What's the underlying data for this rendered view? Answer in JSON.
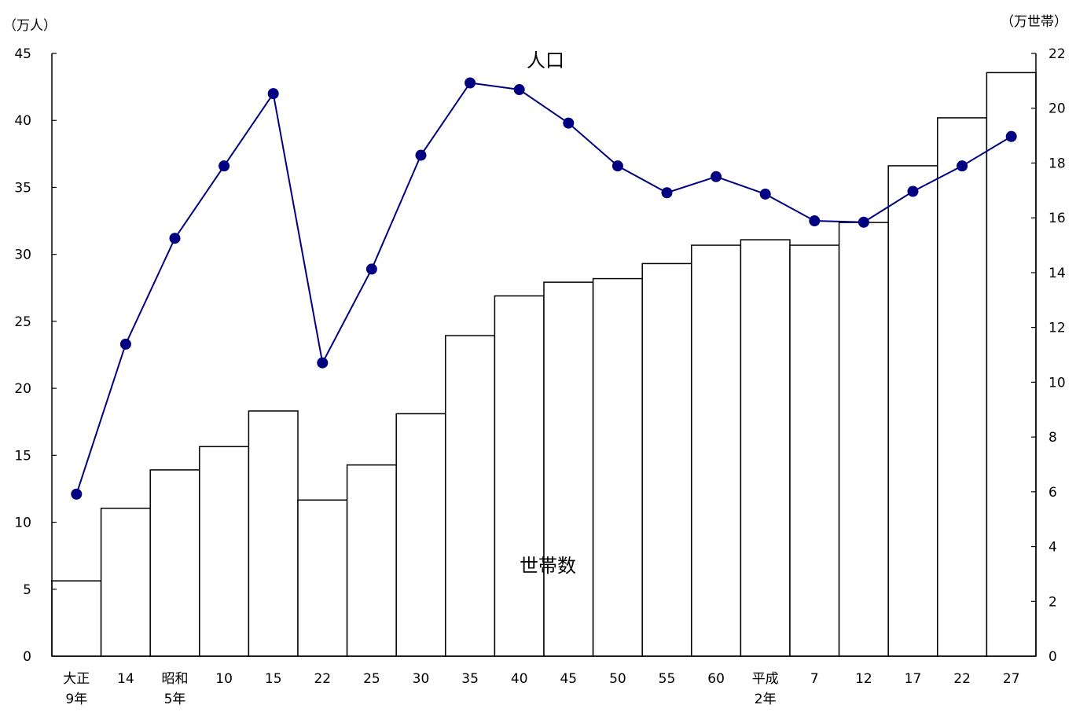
{
  "chart_data": {
    "type": "bar+line",
    "left_axis": {
      "unit": "（万人）",
      "range": [
        0,
        45
      ],
      "ticks": [
        0,
        5,
        10,
        15,
        20,
        25,
        30,
        35,
        40,
        45
      ]
    },
    "right_axis": {
      "unit": "（万世帯）",
      "range": [
        0,
        22
      ],
      "ticks": [
        0,
        2,
        4,
        6,
        8,
        10,
        12,
        14,
        16,
        18,
        20,
        22
      ]
    },
    "categories": [
      [
        "大正",
        "9年"
      ],
      [
        "14"
      ],
      [
        "昭和",
        "5年"
      ],
      [
        "10"
      ],
      [
        "15"
      ],
      [
        "22"
      ],
      [
        "25"
      ],
      [
        "30"
      ],
      [
        "35"
      ],
      [
        "40"
      ],
      [
        "45"
      ],
      [
        "50"
      ],
      [
        "55"
      ],
      [
        "60"
      ],
      [
        "平成",
        "2年"
      ],
      [
        "7"
      ],
      [
        "12"
      ],
      [
        "17"
      ],
      [
        "22"
      ],
      [
        "27"
      ]
    ],
    "series": [
      {
        "name": "世帯数",
        "type": "bar",
        "axis": "right",
        "values": [
          2.75,
          5.4,
          6.8,
          7.65,
          8.95,
          5.7,
          6.98,
          8.85,
          11.7,
          13.15,
          13.65,
          13.78,
          14.33,
          15.0,
          15.2,
          15.0,
          15.83,
          17.9,
          19.65,
          21.3
        ]
      },
      {
        "name": "人口",
        "type": "line",
        "axis": "left",
        "color": "#000080",
        "values": [
          12.1,
          23.3,
          31.2,
          36.6,
          42.0,
          21.9,
          28.9,
          37.4,
          42.8,
          42.3,
          39.8,
          36.6,
          34.6,
          35.8,
          34.5,
          32.5,
          32.4,
          34.7,
          36.6,
          38.8
        ]
      }
    ]
  }
}
